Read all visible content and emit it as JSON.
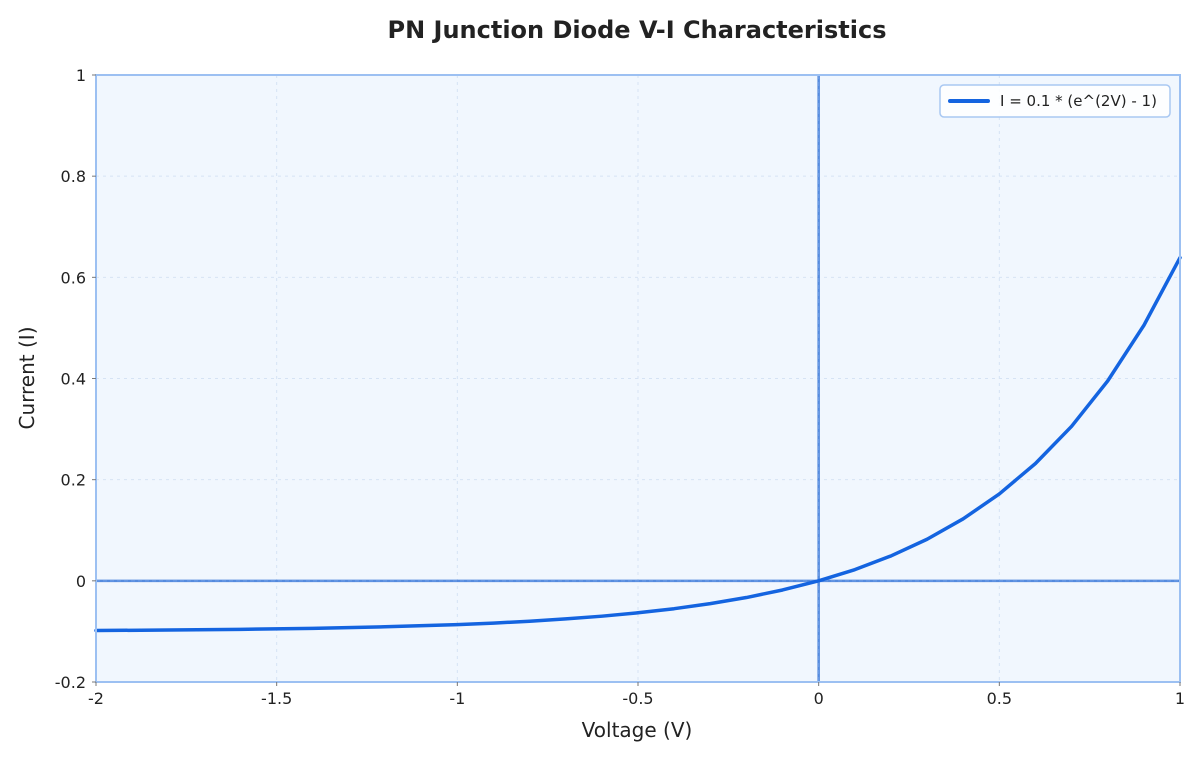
{
  "chart_data": {
    "type": "line",
    "title": "PN Junction Diode V-I Characteristics",
    "xlabel": "Voltage (V)",
    "ylabel": "Current (I)",
    "xlim": [
      -2,
      1
    ],
    "ylim": [
      -0.2,
      1
    ],
    "x_ticks": [
      -2,
      -1.5,
      -1,
      -0.5,
      0,
      0.5,
      1
    ],
    "x_tick_labels": [
      "-2",
      "-1.5",
      "-1",
      "-0.5",
      "0",
      "0.5",
      "1"
    ],
    "y_ticks": [
      -0.2,
      0,
      0.2,
      0.4,
      0.6,
      0.8,
      1
    ],
    "y_tick_labels": [
      "-0.2",
      "0",
      "0.2",
      "0.4",
      "0.6",
      "0.8",
      "1"
    ],
    "grid": true,
    "legend_position": "top-right",
    "series": [
      {
        "name": "I = 0.1 * (e^(2V) - 1)",
        "color": "#1464e0",
        "x": [
          -2.0,
          -1.8,
          -1.6,
          -1.4,
          -1.2,
          -1.0,
          -0.9,
          -0.8,
          -0.7,
          -0.6,
          -0.5,
          -0.4,
          -0.3,
          -0.2,
          -0.1,
          0.0,
          0.1,
          0.2,
          0.3,
          0.4,
          0.5,
          0.6,
          0.7,
          0.8,
          0.9,
          1.0
        ],
        "y": [
          -0.0982,
          -0.0973,
          -0.0959,
          -0.0939,
          -0.0909,
          -0.0865,
          -0.0835,
          -0.0798,
          -0.0753,
          -0.0699,
          -0.0632,
          -0.0551,
          -0.0451,
          -0.033,
          -0.0181,
          0.0,
          0.0221,
          0.0492,
          0.0822,
          0.1226,
          0.1718,
          0.232,
          0.3055,
          0.3953,
          0.505,
          0.6389
        ]
      }
    ],
    "reference_lines": [
      {
        "orientation": "horizontal",
        "value": 0,
        "color": "#3a78d8",
        "style": "dashed"
      },
      {
        "orientation": "vertical",
        "value": 0,
        "color": "#3a78d8",
        "style": "dashed"
      }
    ],
    "colors": {
      "plot_background": "#f1f7fe",
      "frame": "#9cc0f2",
      "grid": "#d6e3f4",
      "legend_border": "#a9c8f2"
    }
  }
}
